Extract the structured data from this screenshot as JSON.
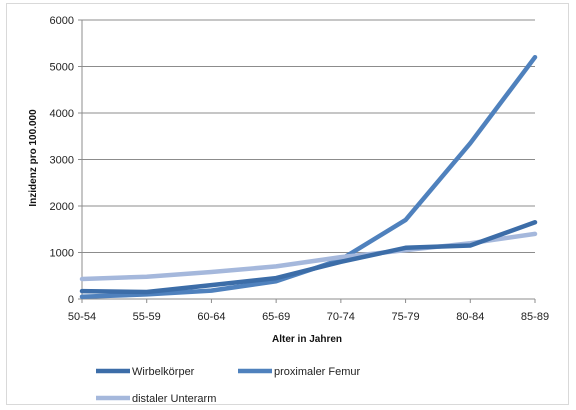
{
  "chart_data": {
    "type": "line",
    "title": "",
    "xlabel": "Alter in Jahren",
    "ylabel": "Inzidenz pro 100.000",
    "categories": [
      "50-54",
      "55-59",
      "60-64",
      "65-69",
      "70-74",
      "75-79",
      "80-84",
      "85-89"
    ],
    "ylim": [
      0,
      6000
    ],
    "yticks": [
      0,
      1000,
      2000,
      3000,
      4000,
      5000,
      6000
    ],
    "grid": true,
    "legend_position": "bottom",
    "series": [
      {
        "name": "Wirbelkörper",
        "color": "#3c6da8",
        "values": [
          170,
          150,
          300,
          450,
          800,
          1100,
          1150,
          1650
        ]
      },
      {
        "name": "proximaler Femur",
        "color": "#4f81bd",
        "values": [
          50,
          100,
          180,
          380,
          850,
          1700,
          3350,
          5200
        ]
      },
      {
        "name": "distaler Unterarm",
        "color": "#a5b8dc",
        "values": [
          430,
          480,
          580,
          700,
          900,
          1050,
          1200,
          1400
        ]
      }
    ]
  }
}
